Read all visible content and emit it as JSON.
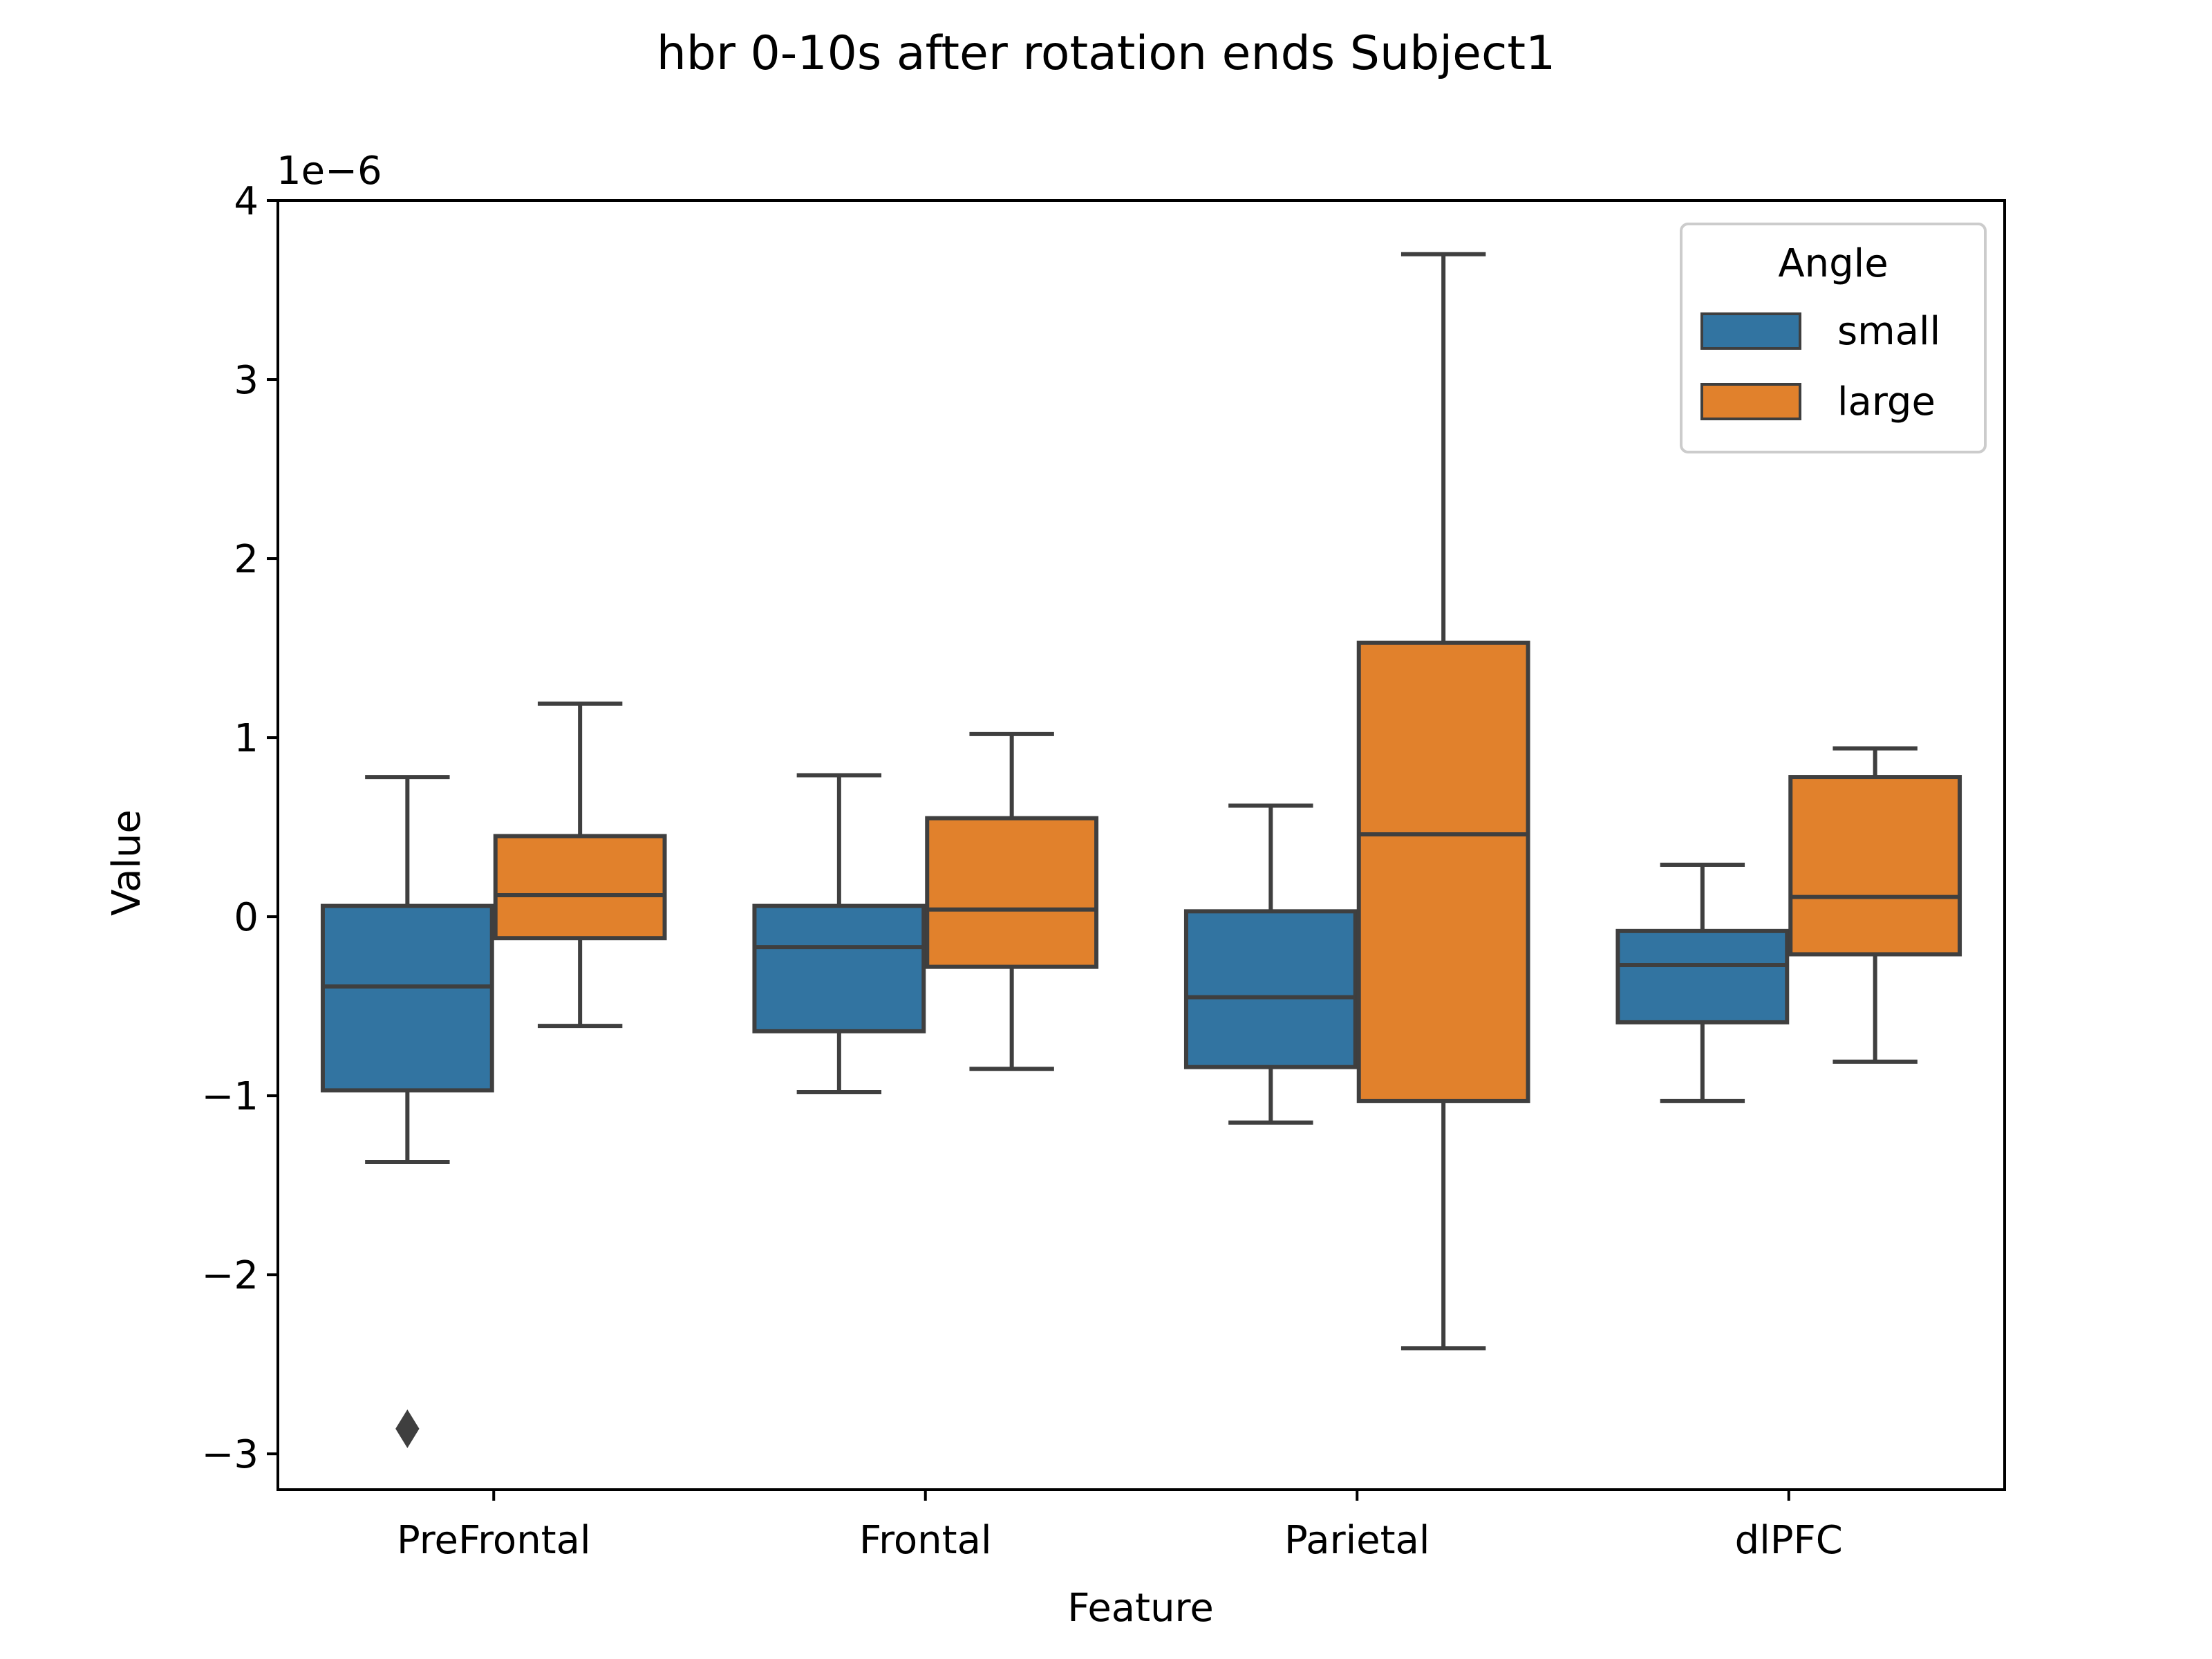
{
  "chart_data": {
    "type": "box",
    "title": "hbr 0-10s after rotation ends Subject1",
    "xlabel": "Feature",
    "ylabel": "Value",
    "y_offset_label": "1e−6",
    "ylim": [
      -3.2,
      4.0
    ],
    "yticks": [
      -3,
      -2,
      -1,
      0,
      1,
      2,
      3,
      4
    ],
    "ytick_labels": [
      "−3",
      "−2",
      "−1",
      "0",
      "1",
      "2",
      "3",
      "4"
    ],
    "categories": [
      "PreFrontal",
      "Frontal",
      "Parietal",
      "dlPFC"
    ],
    "grid": false,
    "legend": {
      "title": "Angle",
      "position": "top-right"
    },
    "series": [
      {
        "name": "small",
        "color": "#3274a1",
        "boxes": [
          {
            "whislo": -1.37,
            "q1": -0.97,
            "med": -0.39,
            "q3": 0.06,
            "whishi": 0.78,
            "fliers": [
              -2.86
            ]
          },
          {
            "whislo": -0.98,
            "q1": -0.64,
            "med": -0.17,
            "q3": 0.06,
            "whishi": 0.79,
            "fliers": []
          },
          {
            "whislo": -1.15,
            "q1": -0.84,
            "med": -0.45,
            "q3": 0.03,
            "whishi": 0.62,
            "fliers": []
          },
          {
            "whislo": -1.03,
            "q1": -0.59,
            "med": -0.27,
            "q3": -0.08,
            "whishi": 0.29,
            "fliers": []
          }
        ]
      },
      {
        "name": "large",
        "color": "#e1812c",
        "boxes": [
          {
            "whislo": -0.61,
            "q1": -0.12,
            "med": 0.12,
            "q3": 0.45,
            "whishi": 1.19,
            "fliers": []
          },
          {
            "whislo": -0.85,
            "q1": -0.28,
            "med": 0.04,
            "q3": 0.55,
            "whishi": 1.02,
            "fliers": []
          },
          {
            "whislo": -2.41,
            "q1": -1.03,
            "med": 0.46,
            "q3": 1.53,
            "whishi": 3.7,
            "fliers": []
          },
          {
            "whislo": -0.81,
            "q1": -0.21,
            "med": 0.11,
            "q3": 0.78,
            "whishi": 0.94,
            "fliers": []
          }
        ]
      }
    ],
    "colors": {
      "line": "#3f3f3f",
      "axis": "#000000",
      "legend_border": "#cccccc"
    }
  }
}
